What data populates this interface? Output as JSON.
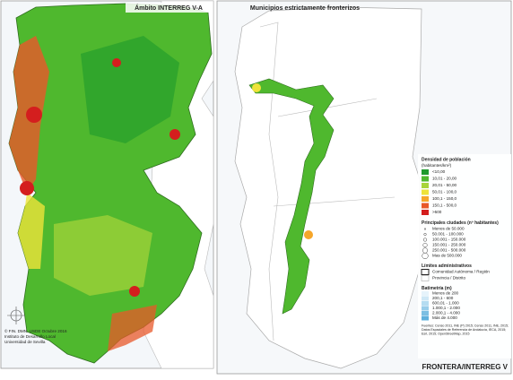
{
  "left_panel": {
    "title": "Ámbito INTERREG V-A",
    "credit": [
      "© FIN. DMN. USDE Octubre 2016",
      "Instituto de Desarrollo Local",
      "Universidad de Sevilla"
    ]
  },
  "right_panel": {
    "title": "Municipios estrictamente fronterizos"
  },
  "legend": {
    "density": {
      "title": [
        "Densidad de población",
        "(habitantes/km²)"
      ],
      "items": [
        "<10,00",
        "10,01 - 20,00",
        "20,01 - 50,00",
        "50,01 - 100,0",
        "100,1 - 150,0",
        "150,1 - 500,0",
        ">500"
      ],
      "colors": [
        "#1e9a2c",
        "#4fb82e",
        "#a8d43a",
        "#eee33a",
        "#f6a62a",
        "#e8582a",
        "#d41e1e"
      ]
    },
    "cities": {
      "title": "Principales ciudades (nº habitantes)",
      "items": [
        "Menos de 50.000",
        "50.001 - 100.000",
        "100.001 - 150.000",
        "150.001 - 250.000",
        "250.001 - 500.000",
        "Mas de 500.000"
      ]
    },
    "limits": {
      "title": "Límites administrativos",
      "items": [
        "Comunidad Autónoma / Región",
        "Provincia / Distrito"
      ]
    },
    "bathymetry": {
      "title": "Batimetría (m)",
      "items": [
        "Menos de 200",
        "200,1 - 600",
        "600,01 - 1.000",
        "1.000,1 - 2.000",
        "2.000,1 - 4.000",
        "Más de 4.000"
      ],
      "colors": [
        "#e6f3fb",
        "#cfe8f6",
        "#b5dcf1",
        "#98cdea",
        "#7cbfe3",
        "#5fb0dc"
      ]
    },
    "sources": [
      "Fuentes: Censo 2011, INE (P) 2015; Censo 2011, INE, 2015;",
      "Datos Espaciales de Referencia de Andalucía, IECA, 2015;",
      "Esri, 2015; OpenStreetMap, 2015"
    ]
  },
  "footer": "FRONTERA/INTERREG V"
}
